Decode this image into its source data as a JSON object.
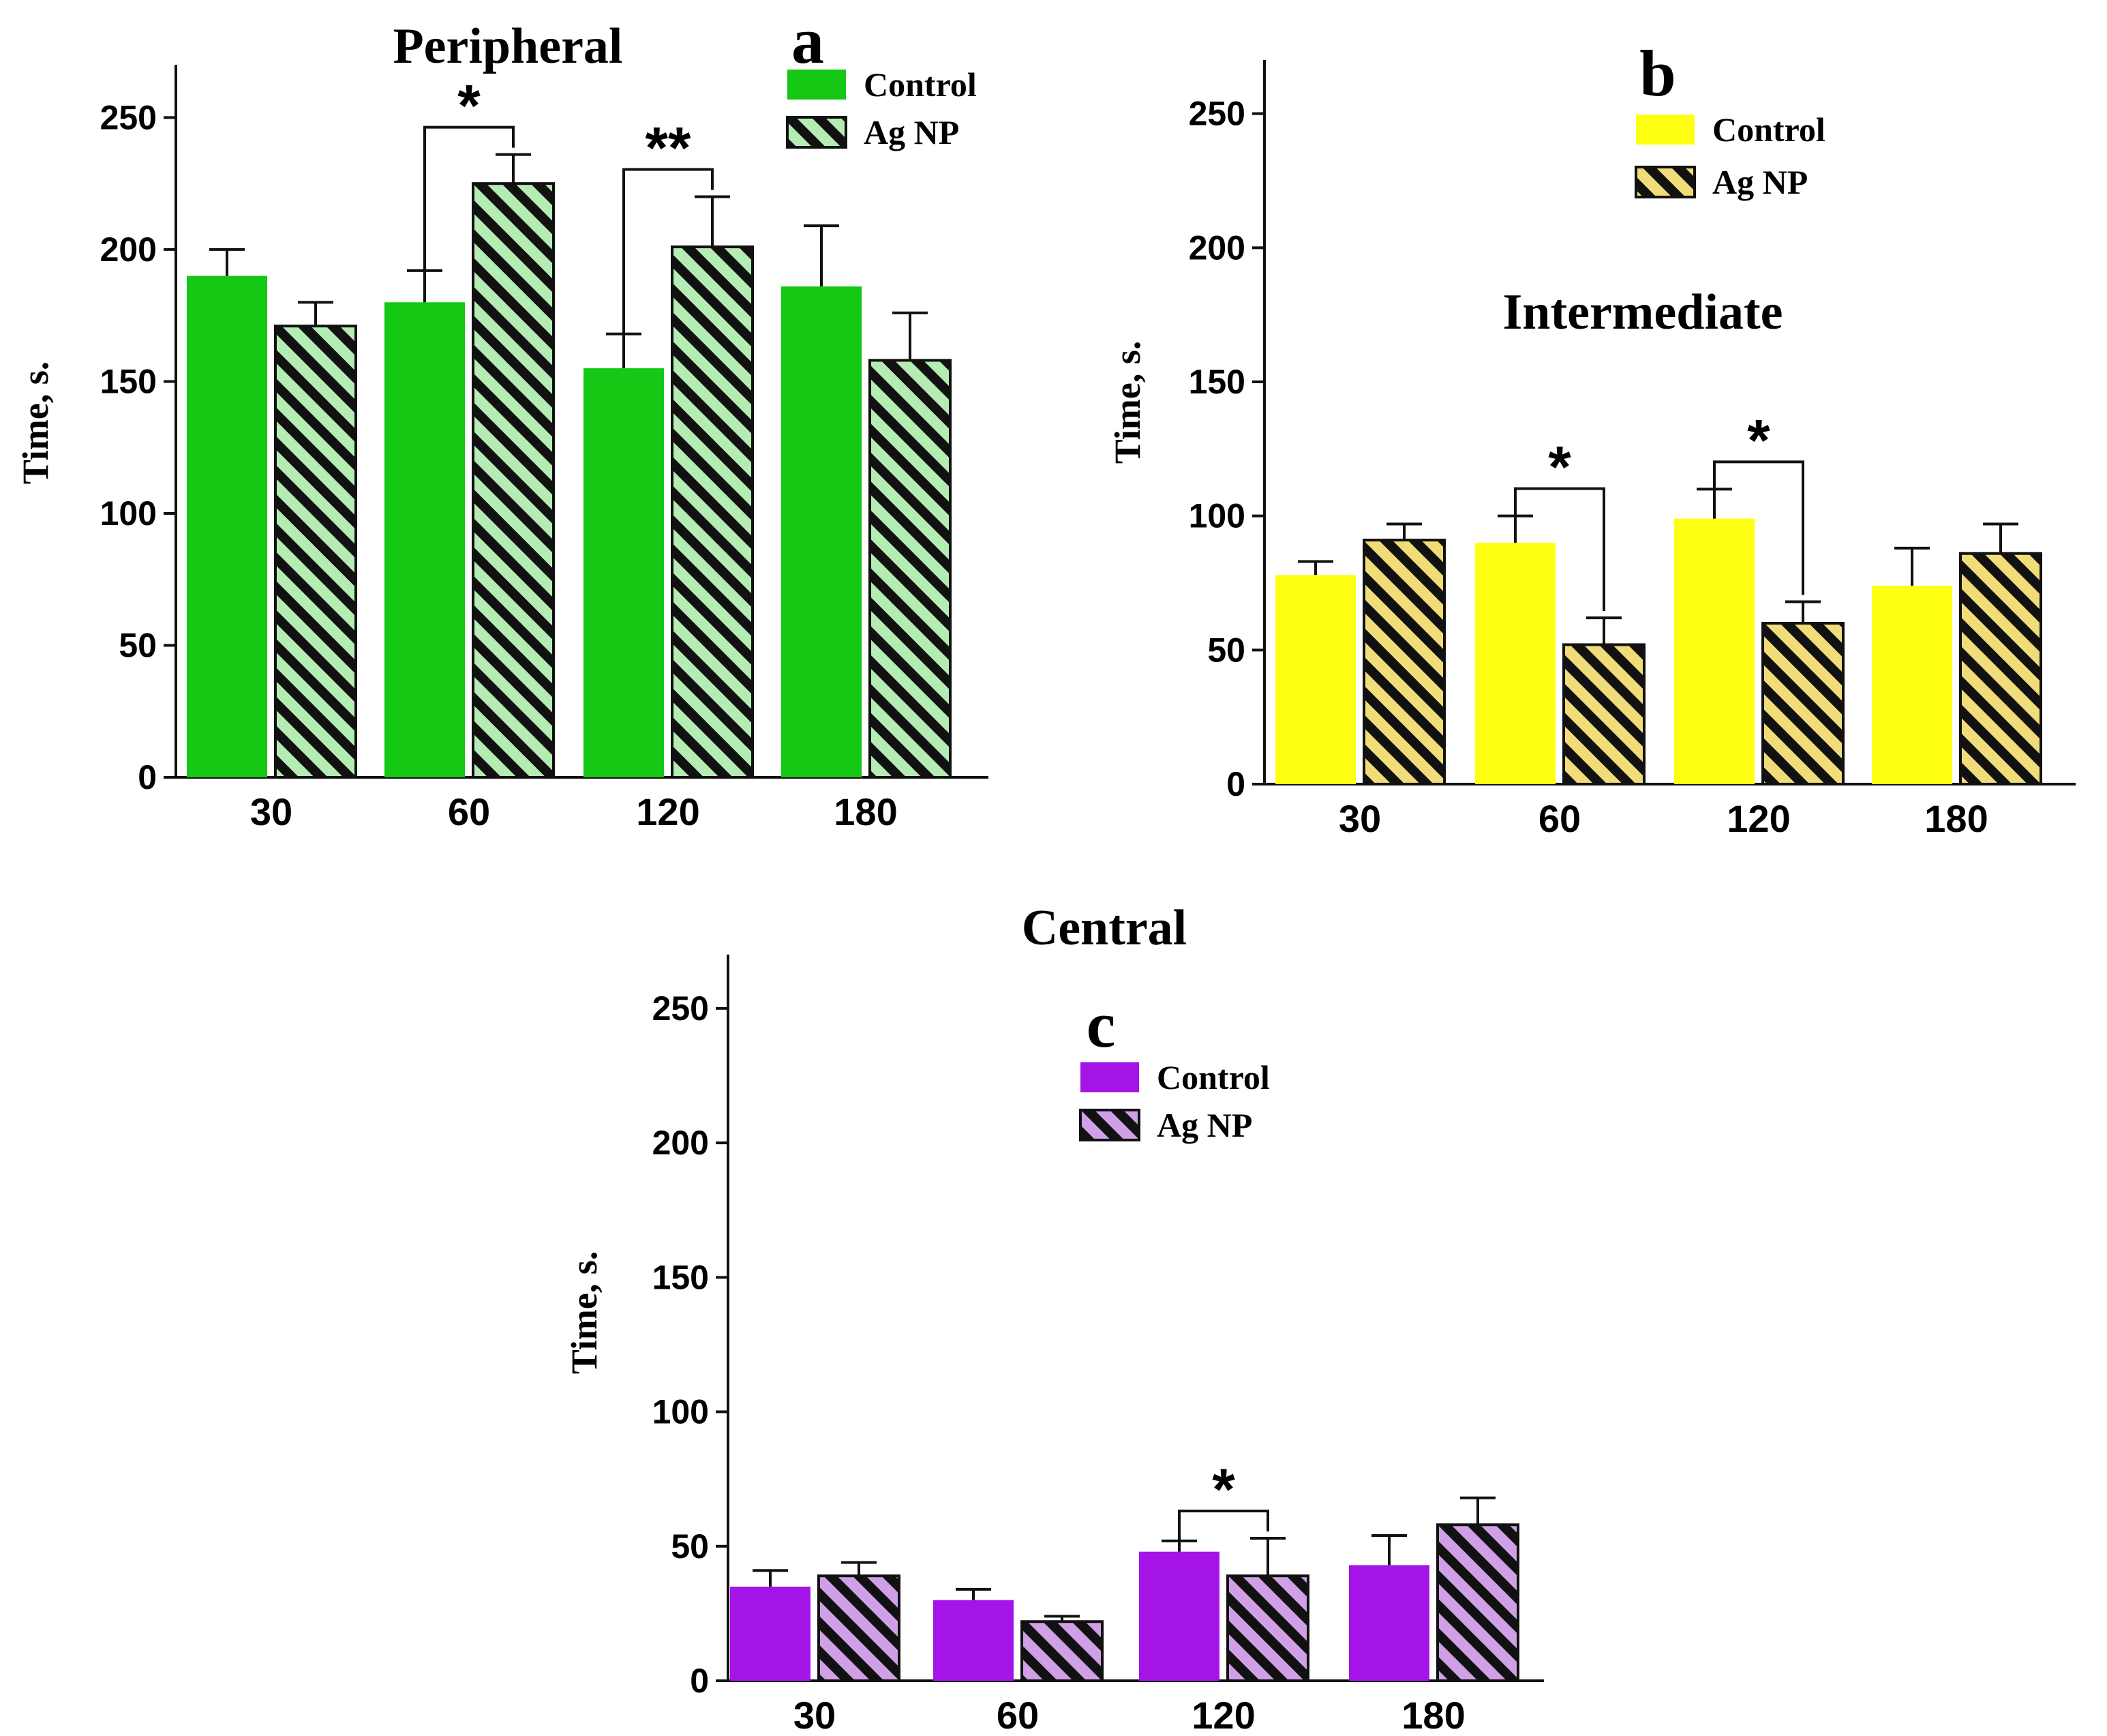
{
  "chart_data": [
    {
      "type": "bar",
      "panel_letter": "a",
      "title": "Peripheral",
      "ylabel": "Time, s.",
      "xlabel": "",
      "ylim": [
        0,
        270
      ],
      "yticks": [
        0,
        50,
        100,
        150,
        200,
        250
      ],
      "categories": [
        "30",
        "60",
        "120",
        "180"
      ],
      "legend_placement": "top-right",
      "colors": {
        "fill": "#14c814",
        "hatch_bg": "#b4ecb4",
        "hatch_line": "#111111"
      },
      "series": [
        {
          "name": "Control",
          "pattern": "solid",
          "values": [
            190,
            180,
            155,
            186
          ],
          "errors": [
            10,
            12,
            13,
            23
          ]
        },
        {
          "name": "Ag NP",
          "pattern": "hatched",
          "values": [
            171,
            225,
            201,
            158
          ],
          "errors": [
            9,
            11,
            19,
            18
          ]
        }
      ],
      "annotations": [
        {
          "category": "60",
          "label": "*"
        },
        {
          "category": "120",
          "label": "**"
        }
      ]
    },
    {
      "type": "bar",
      "panel_letter": "b",
      "title": "Intermediate",
      "ylabel": "Time, s.",
      "xlabel": "",
      "ylim": [
        0,
        270
      ],
      "yticks": [
        0,
        50,
        100,
        150,
        200,
        250
      ],
      "categories": [
        "30",
        "60",
        "120",
        "180"
      ],
      "legend_placement": "top-right",
      "colors": {
        "fill": "#ffff14",
        "hatch_bg": "#f0dc78",
        "hatch_line": "#111111"
      },
      "series": [
        {
          "name": "Control",
          "pattern": "solid",
          "values": [
            78,
            90,
            99,
            74
          ],
          "errors": [
            5,
            10,
            11,
            14
          ]
        },
        {
          "name": "Ag NP",
          "pattern": "hatched",
          "values": [
            91,
            52,
            60,
            86
          ],
          "errors": [
            6,
            10,
            8,
            11
          ]
        }
      ],
      "annotations": [
        {
          "category": "60",
          "label": "*"
        },
        {
          "category": "120",
          "label": "*"
        }
      ]
    },
    {
      "type": "bar",
      "panel_letter": "c",
      "title": "Central",
      "ylabel": "Time, s.",
      "xlabel": "",
      "ylim": [
        0,
        270
      ],
      "yticks": [
        0,
        50,
        100,
        150,
        200,
        250
      ],
      "categories": [
        "30",
        "60",
        "120",
        "180"
      ],
      "legend_placement": "top-left",
      "colors": {
        "fill": "#a514e6",
        "hatch_bg": "#cfa0e6",
        "hatch_line": "#111111"
      },
      "series": [
        {
          "name": "Control",
          "pattern": "solid",
          "values": [
            35,
            30,
            48,
            43
          ],
          "errors": [
            6,
            4,
            4,
            11
          ]
        },
        {
          "name": "Ag NP",
          "pattern": "hatched",
          "values": [
            39,
            22,
            39,
            58
          ],
          "errors": [
            5,
            2,
            14,
            10
          ]
        }
      ],
      "annotations": [
        {
          "category": "120",
          "label": "*"
        }
      ]
    }
  ]
}
